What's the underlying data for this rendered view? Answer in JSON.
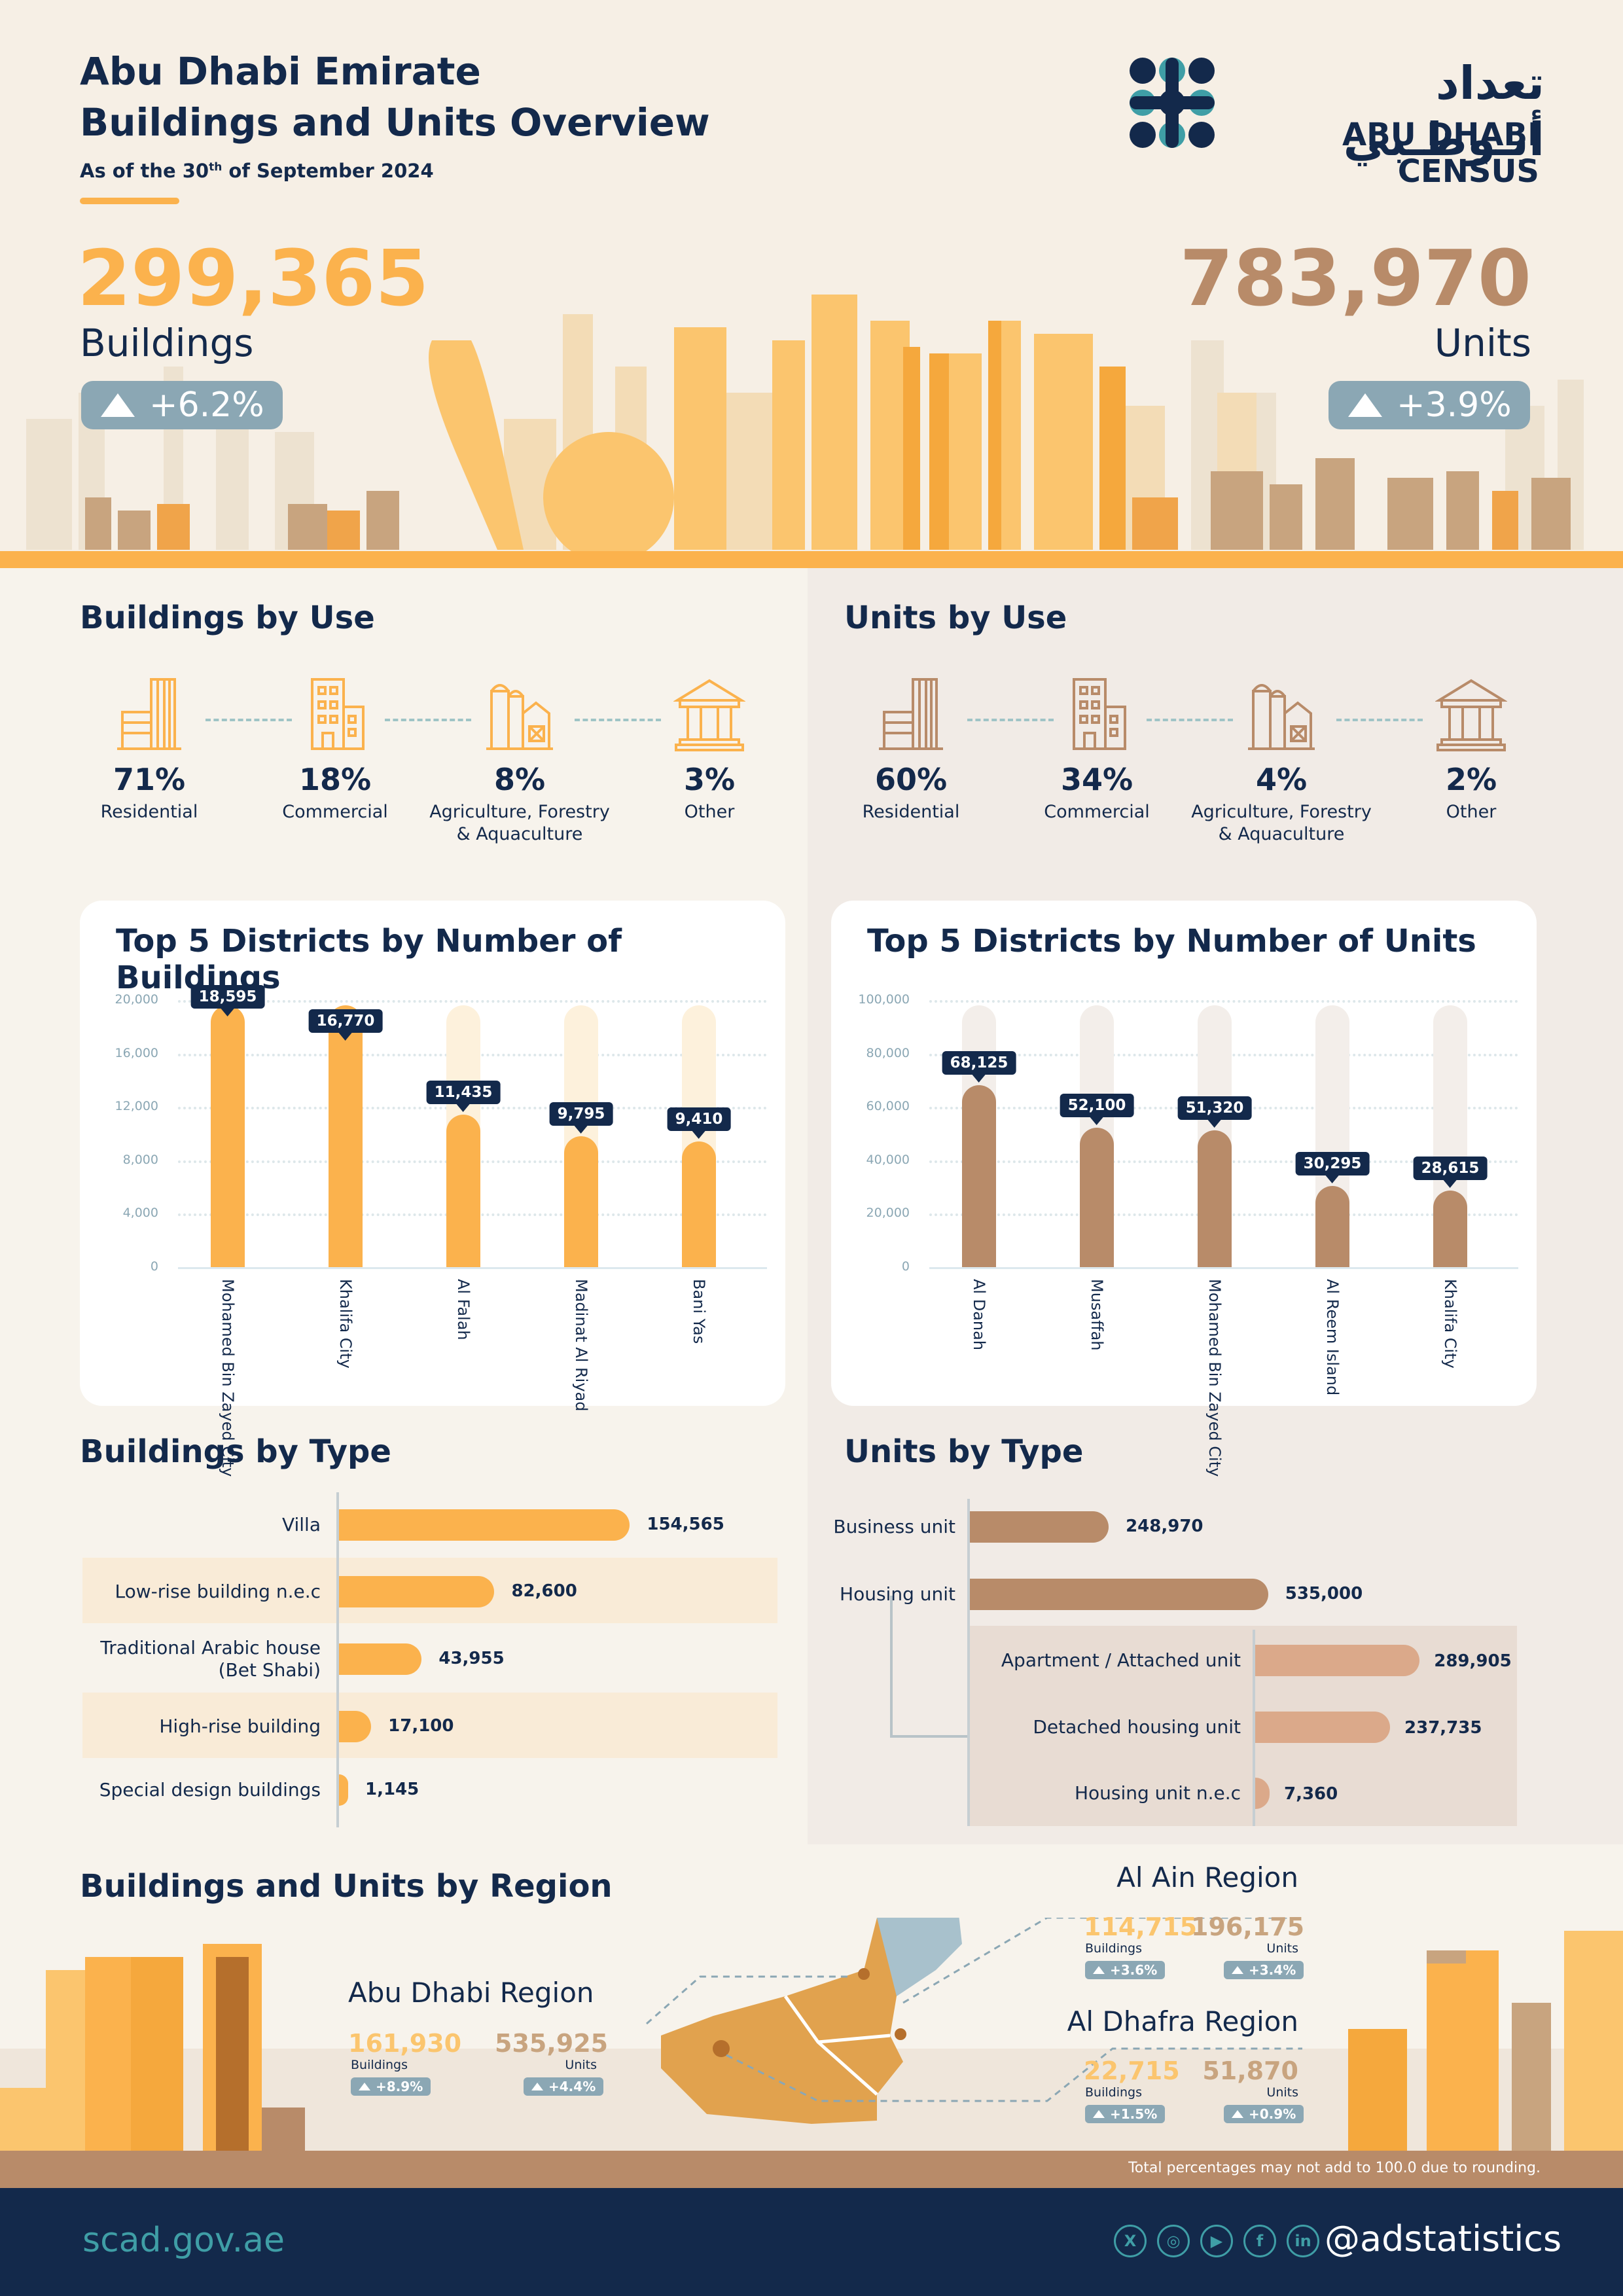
{
  "header": {
    "title_line1": "Abu Dhabi Emirate",
    "title_line2": "Buildings and Units Overview",
    "date_prefix": "As of the 30",
    "date_sup": "th",
    "date_suffix": " of September 2024",
    "logo_arabic": "تعداد أبـوظـبي",
    "logo_english": "ABU DHABI CENSUS"
  },
  "kpi": {
    "buildings_value": "299,365",
    "buildings_label": "Buildings",
    "buildings_change": "+6.2%",
    "units_value": "783,970",
    "units_label": "Units",
    "units_change": "+3.9%"
  },
  "buildings_by_use": {
    "title": "Buildings by Use",
    "items": [
      {
        "pct": "71%",
        "label": "Residential",
        "icon": "residential-building-icon"
      },
      {
        "pct": "18%",
        "label": "Commercial",
        "icon": "commercial-building-icon"
      },
      {
        "pct": "8%",
        "label": "Agriculture, Forestry & Aquaculture",
        "icon": "farm-silo-icon"
      },
      {
        "pct": "3%",
        "label": "Other",
        "icon": "columned-building-icon"
      }
    ]
  },
  "units_by_use": {
    "title": "Units by Use",
    "items": [
      {
        "pct": "60%",
        "label": "Residential",
        "icon": "residential-building-icon"
      },
      {
        "pct": "34%",
        "label": "Commercial",
        "icon": "commercial-building-icon"
      },
      {
        "pct": "4%",
        "label": "Agriculture, Forestry & Aquaculture",
        "icon": "farm-silo-icon"
      },
      {
        "pct": "2%",
        "label": "Other",
        "icon": "columned-building-icon"
      }
    ]
  },
  "chart_data": [
    {
      "type": "bar",
      "title": "Top 5 Districts by Number of Buildings",
      "categories": [
        "Mohamed Bin Zayed City",
        "Khalifa City",
        "Al Falah",
        "Madinat Al Riyad",
        "Bani Yas"
      ],
      "values": [
        18595,
        16770,
        11435,
        9795,
        9410
      ],
      "value_labels": [
        "18,595",
        "16,770",
        "11,435",
        "9,795",
        "9,410"
      ],
      "yticks": [
        "0",
        "4,000",
        "8,000",
        "12,000",
        "16,000",
        "20,000"
      ],
      "ylim": [
        0,
        20000
      ],
      "color": "#fbb24d",
      "track_colors": [
        "#fbb24d",
        "#fbb24d",
        "#fdf1dc",
        "#fdf1dc",
        "#fdf1dc"
      ]
    },
    {
      "type": "bar",
      "title": "Top 5 Districts by Number of Units",
      "categories": [
        "Al Danah",
        "Musaffah",
        "Mohamed Bin Zayed City",
        "Al Reem Island",
        "Khalifa City"
      ],
      "values": [
        68125,
        52100,
        51320,
        30295,
        28615
      ],
      "value_labels": [
        "68,125",
        "52,100",
        "51,320",
        "30,295",
        "28,615"
      ],
      "yticks": [
        "0",
        "20,000",
        "40,000",
        "60,000",
        "80,000",
        "100,000"
      ],
      "ylim": [
        0,
        100000
      ],
      "color": "#b88b69",
      "track_colors": [
        "#f3eeea",
        "#f3eeea",
        "#f3eeea",
        "#f3eeea",
        "#f3eeea"
      ]
    },
    {
      "type": "bar",
      "orientation": "horizontal",
      "title": "Buildings by Type",
      "categories": [
        "Villa",
        "Low-rise building n.e.c",
        "Traditional Arabic house (Bet Shabi)",
        "High-rise building",
        "Special design buildings"
      ],
      "values": [
        154565,
        82600,
        43955,
        17100,
        1145
      ],
      "value_labels": [
        "154,565",
        "82,600",
        "43,955",
        "17,100",
        "1,145"
      ],
      "color": "#fbb24d"
    },
    {
      "type": "bar",
      "orientation": "horizontal",
      "title": "Units by Type",
      "categories": [
        "Business unit",
        "Housing unit"
      ],
      "values": [
        248970,
        535000
      ],
      "value_labels": [
        "248,970",
        "535,000"
      ],
      "sub_categories": [
        "Apartment / Attached unit",
        "Detached housing unit",
        "Housing unit n.e.c"
      ],
      "sub_values": [
        289905,
        237735,
        7360
      ],
      "sub_value_labels": [
        "289,905",
        "237,735",
        "7,360"
      ],
      "color": "#b88b69",
      "sub_color": "#dba98a"
    }
  ],
  "regions": {
    "title": "Buildings and Units by Region",
    "buildings_word": "Buildings",
    "units_word": "Units",
    "abu_dhabi": {
      "name": "Abu Dhabi Region",
      "buildings": "161,930",
      "units": "535,925",
      "b_change": "+8.9%",
      "u_change": "+4.4%"
    },
    "al_ain": {
      "name": "Al Ain Region",
      "buildings": "114,715",
      "units": "196,175",
      "b_change": "+3.6%",
      "u_change": "+3.4%"
    },
    "al_dhafra": {
      "name": "Al Dhafra Region",
      "buildings": "22,715",
      "units": "51,870",
      "b_change": "+1.5%",
      "u_change": "+0.9%"
    }
  },
  "note": "Total percentages may not add to 100.0 due to rounding.",
  "footer": {
    "website": "scad.gov.ae",
    "handle": "@adstatistics",
    "socials": [
      "x-icon",
      "instagram-icon",
      "youtube-icon",
      "facebook-icon",
      "linkedin-icon"
    ]
  },
  "colors": {
    "navy": "#13294b",
    "orange": "#fbb24d",
    "brown": "#b88b69",
    "teal": "#3f9ea6",
    "slate": "#8ba7b4"
  }
}
